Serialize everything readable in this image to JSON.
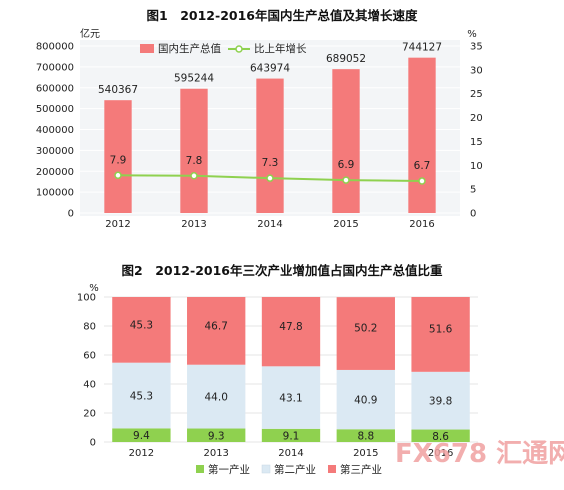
{
  "chart_data": [
    {
      "type": "bar+line",
      "title": "图1　2012-2016年国内生产总值及其增长速度",
      "left_unit": "亿元",
      "right_unit": "%",
      "categories": [
        "2012",
        "2013",
        "2014",
        "2015",
        "2016"
      ],
      "series": [
        {
          "name": "国内生产总值",
          "type": "bar",
          "axis": "left",
          "color": "#f47a7a",
          "values": [
            540367,
            595244,
            643974,
            689052,
            744127
          ]
        },
        {
          "name": "比上年增长",
          "type": "line",
          "axis": "right",
          "color": "#8fd14f",
          "values": [
            7.9,
            7.8,
            7.3,
            6.9,
            6.7
          ]
        }
      ],
      "left_ylim": [
        0,
        800000
      ],
      "left_ticks": [
        "0",
        "100000",
        "200000",
        "300000",
        "400000",
        "500000",
        "600000",
        "700000",
        "800000"
      ],
      "right_ylim": [
        0,
        35
      ],
      "right_ticks": [
        "0",
        "5",
        "10",
        "15",
        "20",
        "25",
        "30",
        "35"
      ],
      "legend_position": "top-left"
    },
    {
      "type": "stacked-bar",
      "title": "图2　2012-2016年三次产业增加值占国内生产总值比重",
      "y_unit": "%",
      "categories": [
        "2012",
        "2013",
        "2014",
        "2015",
        "2016"
      ],
      "series": [
        {
          "name": "第一产业",
          "color": "#8fd14f",
          "values": [
            9.4,
            9.3,
            9.1,
            8.8,
            8.6
          ]
        },
        {
          "name": "第二产业",
          "color": "#dbe9f3",
          "values": [
            45.3,
            44.0,
            43.1,
            40.9,
            39.8
          ]
        },
        {
          "name": "第三产业",
          "color": "#f47a7a",
          "values": [
            45.3,
            46.7,
            47.8,
            50.2,
            51.6
          ]
        }
      ],
      "ylim": [
        0,
        100
      ],
      "y_ticks": [
        "0",
        "20",
        "40",
        "60",
        "80",
        "100"
      ],
      "legend_position": "bottom"
    }
  ],
  "watermark": {
    "text": "FX678 汇通网"
  }
}
